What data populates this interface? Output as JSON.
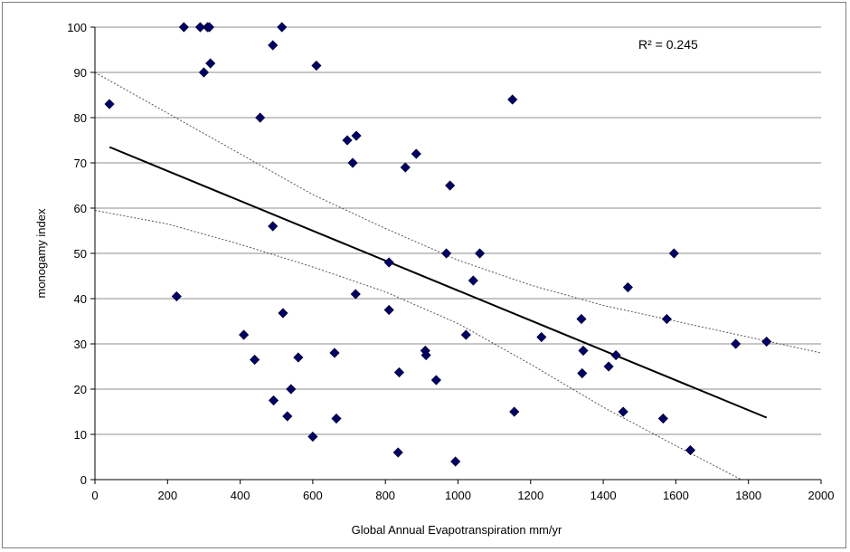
{
  "chart_data": {
    "type": "scatter",
    "title": "",
    "xlabel": "Global  Annual  Evapotranspiration  mm/yr",
    "ylabel": "monogamy  index",
    "xlim": [
      0,
      2000
    ],
    "ylim": [
      0,
      100
    ],
    "xticks": [
      "0",
      "200",
      "400",
      "600",
      "800",
      "1000",
      "1200",
      "1400",
      "1600",
      "1800",
      "2000"
    ],
    "yticks": [
      "0",
      "10",
      "20",
      "30",
      "40",
      "50",
      "60",
      "70",
      "80",
      "90",
      "100"
    ],
    "grid": "horizontal",
    "annotation": "R² = 0.245",
    "marker_color": "#000066",
    "points": [
      [
        40,
        83
      ],
      [
        225,
        40.5
      ],
      [
        245,
        100
      ],
      [
        290,
        100
      ],
      [
        300,
        90
      ],
      [
        310,
        100
      ],
      [
        315,
        100
      ],
      [
        318,
        92
      ],
      [
        410,
        32
      ],
      [
        440,
        26.5
      ],
      [
        455,
        80
      ],
      [
        490,
        96
      ],
      [
        490,
        56
      ],
      [
        492,
        17.5
      ],
      [
        515,
        100
      ],
      [
        518,
        36.8
      ],
      [
        530,
        14
      ],
      [
        540,
        20
      ],
      [
        560,
        27
      ],
      [
        600,
        9.5
      ],
      [
        610,
        91.5
      ],
      [
        660,
        28
      ],
      [
        665,
        13.5
      ],
      [
        695,
        75
      ],
      [
        710,
        70
      ],
      [
        718,
        41
      ],
      [
        720,
        76
      ],
      [
        810,
        48
      ],
      [
        810,
        37.5
      ],
      [
        835,
        6
      ],
      [
        838,
        23.7
      ],
      [
        855,
        69
      ],
      [
        885,
        72
      ],
      [
        910,
        28.5
      ],
      [
        912,
        27.5
      ],
      [
        940,
        22
      ],
      [
        968,
        50
      ],
      [
        978,
        65
      ],
      [
        993,
        4
      ],
      [
        1022,
        32
      ],
      [
        1042,
        44
      ],
      [
        1060,
        50
      ],
      [
        1150,
        84
      ],
      [
        1155,
        15
      ],
      [
        1230,
        31.5
      ],
      [
        1340,
        35.5
      ],
      [
        1342,
        23.5
      ],
      [
        1345,
        28.5
      ],
      [
        1415,
        25
      ],
      [
        1435,
        27.5
      ],
      [
        1455,
        15
      ],
      [
        1468,
        42.5
      ],
      [
        1565,
        13.5
      ],
      [
        1575,
        35.5
      ],
      [
        1595,
        50
      ],
      [
        1640,
        6.5
      ],
      [
        1765,
        30
      ],
      [
        1850,
        30.5
      ]
    ],
    "trend_line": [
      [
        40,
        73.5
      ],
      [
        1850,
        13.7
      ]
    ],
    "confidence_upper": [
      [
        0,
        90
      ],
      [
        200,
        81
      ],
      [
        400,
        72
      ],
      [
        600,
        63
      ],
      [
        800,
        55.5
      ],
      [
        1000,
        48.5
      ],
      [
        1200,
        43
      ],
      [
        1400,
        38.5
      ],
      [
        1600,
        35
      ],
      [
        1800,
        31.5
      ],
      [
        2000,
        28
      ]
    ],
    "confidence_lower": [
      [
        0,
        59.5
      ],
      [
        200,
        56.5
      ],
      [
        400,
        52
      ],
      [
        600,
        47
      ],
      [
        800,
        41.5
      ],
      [
        1000,
        34.5
      ],
      [
        1200,
        25.5
      ],
      [
        1400,
        16
      ],
      [
        1600,
        7.5
      ],
      [
        1780,
        0
      ]
    ]
  }
}
